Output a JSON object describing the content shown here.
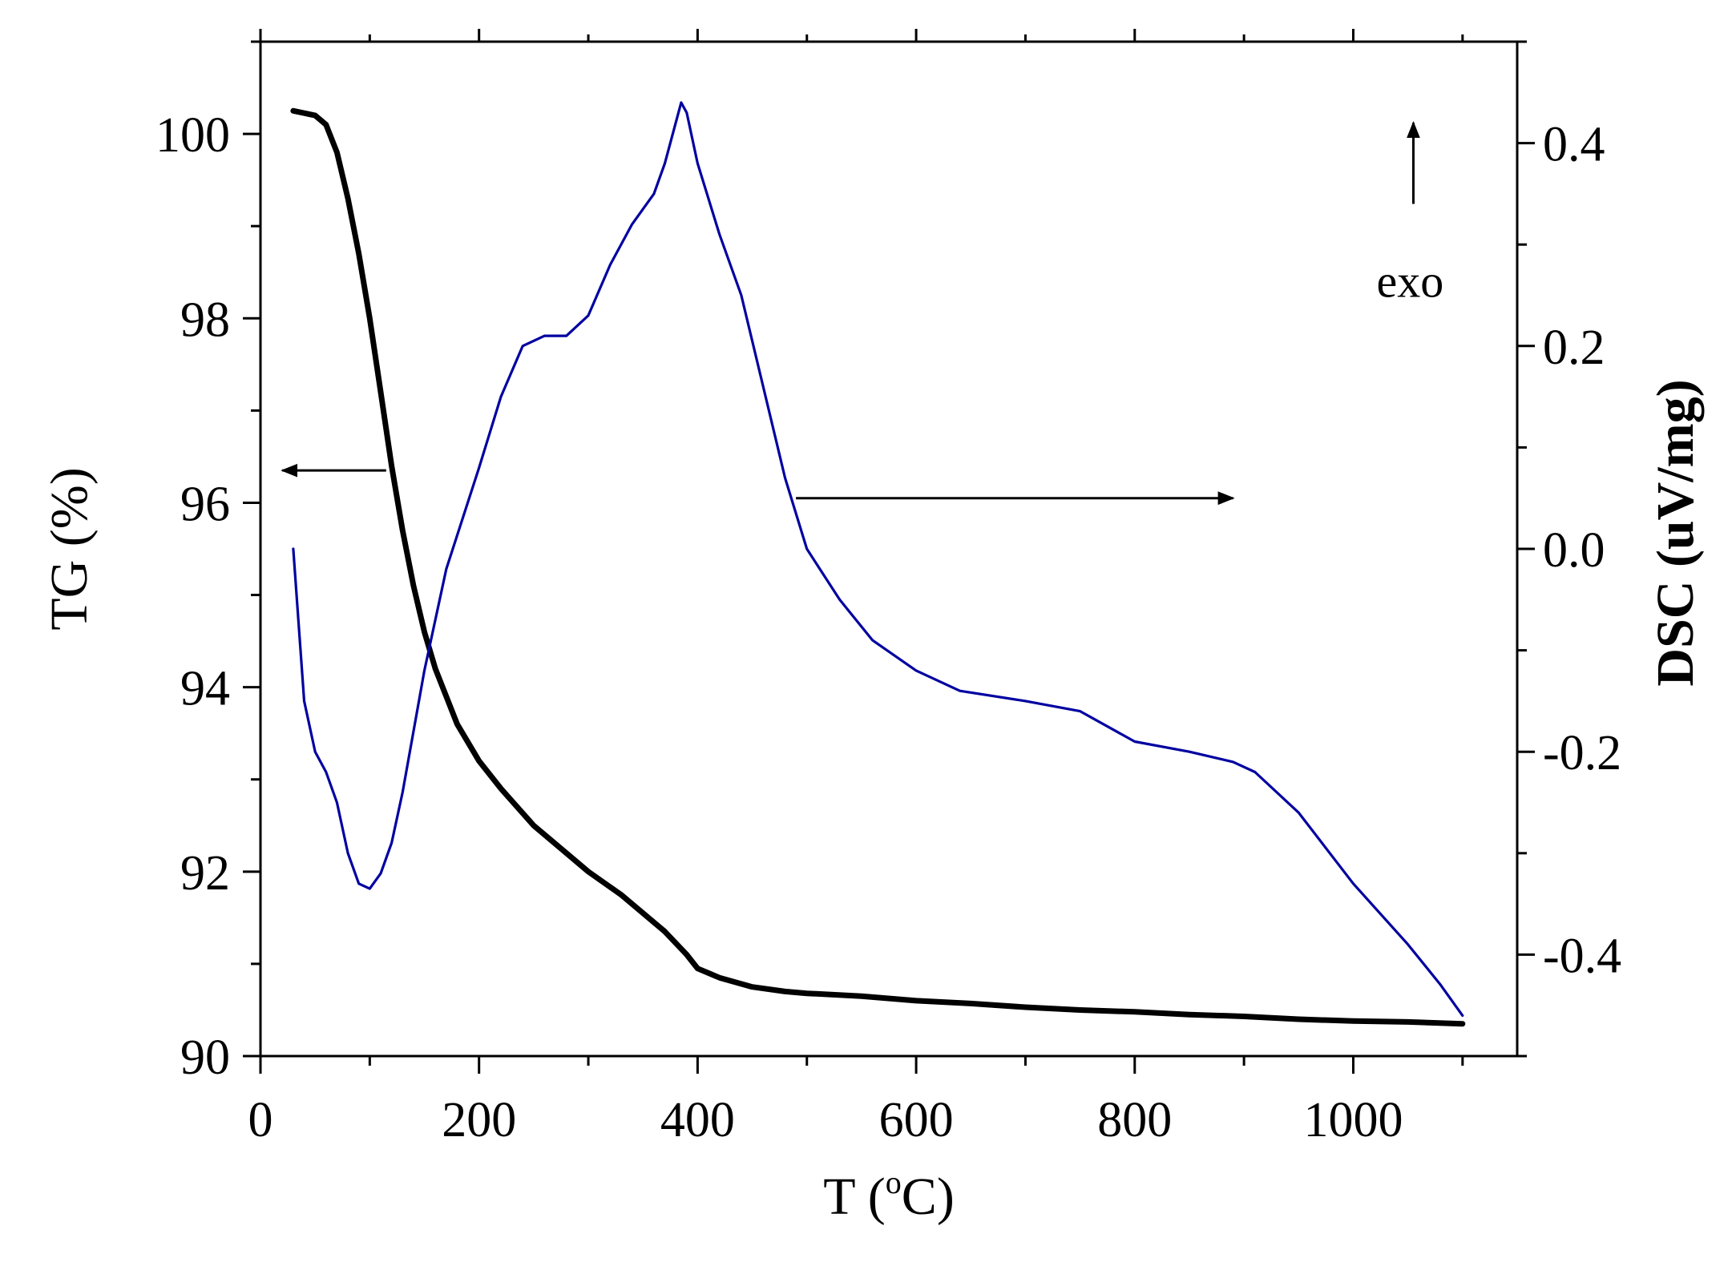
{
  "chart_data": {
    "type": "line",
    "title": "",
    "xlabel": "T (",
    "xlabel_sup": "o",
    "xlabel_tail": "C)",
    "ylabel_left": "TG (%)",
    "ylabel_right": "DSC (uV/mg)",
    "xlim": [
      0,
      1150
    ],
    "ylim_left": [
      90,
      101
    ],
    "ylim_right": [
      -0.5,
      0.5
    ],
    "x_ticks": [
      0,
      200,
      400,
      600,
      800,
      1000
    ],
    "x_tick_labels": [
      "0",
      "200",
      "400",
      "600",
      "800",
      "1000"
    ],
    "y_left_ticks": [
      90,
      92,
      94,
      96,
      98,
      100
    ],
    "y_left_tick_labels": [
      "90",
      "92",
      "94",
      "96",
      "98",
      "100"
    ],
    "y_right_ticks": [
      -0.4,
      -0.2,
      0.0,
      0.2,
      0.4
    ],
    "y_right_tick_labels": [
      "-0.4",
      "-0.2",
      "0.0",
      "0.2",
      "0.4"
    ],
    "grid": false,
    "series": [
      {
        "name": "TG",
        "axis": "left",
        "color": "#000000",
        "x": [
          30,
          50,
          60,
          70,
          80,
          90,
          100,
          110,
          120,
          130,
          140,
          150,
          160,
          170,
          180,
          200,
          220,
          250,
          280,
          300,
          330,
          350,
          370,
          390,
          400,
          420,
          450,
          480,
          500,
          550,
          600,
          650,
          700,
          750,
          800,
          850,
          900,
          950,
          1000,
          1050,
          1100
        ],
        "values": [
          100.25,
          100.2,
          100.1,
          99.8,
          99.3,
          98.7,
          98.0,
          97.2,
          96.4,
          95.7,
          95.1,
          94.6,
          94.2,
          93.9,
          93.6,
          93.2,
          92.9,
          92.5,
          92.2,
          92.0,
          91.75,
          91.55,
          91.35,
          91.1,
          90.95,
          90.85,
          90.75,
          90.7,
          90.68,
          90.65,
          90.6,
          90.57,
          90.53,
          90.5,
          90.48,
          90.45,
          90.43,
          90.4,
          90.38,
          90.37,
          90.35
        ]
      },
      {
        "name": "DSC",
        "axis": "right",
        "color": "#0000a0",
        "x": [
          30,
          40,
          50,
          60,
          70,
          80,
          90,
          100,
          110,
          120,
          130,
          140,
          150,
          170,
          200,
          220,
          240,
          260,
          280,
          300,
          320,
          340,
          360,
          370,
          380,
          385,
          390,
          400,
          420,
          440,
          460,
          480,
          500,
          530,
          560,
          600,
          640,
          700,
          750,
          800,
          850,
          890,
          910,
          950,
          1000,
          1050,
          1080,
          1100
        ],
        "values": [
          0.0,
          -0.15,
          -0.2,
          -0.22,
          -0.25,
          -0.3,
          -0.33,
          -0.335,
          -0.32,
          -0.29,
          -0.24,
          -0.18,
          -0.12,
          -0.02,
          0.08,
          0.15,
          0.2,
          0.21,
          0.21,
          0.23,
          0.28,
          0.32,
          0.35,
          0.38,
          0.42,
          0.44,
          0.43,
          0.38,
          0.31,
          0.25,
          0.16,
          0.07,
          0.0,
          -0.05,
          -0.09,
          -0.12,
          -0.14,
          -0.15,
          -0.16,
          -0.19,
          -0.2,
          -0.21,
          -0.22,
          -0.26,
          -0.33,
          -0.39,
          -0.43,
          -0.46
        ]
      }
    ],
    "annotations": {
      "exo_label": "exo",
      "left_arrow": {
        "from": [
          115,
          96.35
        ],
        "to": [
          20,
          96.35
        ]
      },
      "right_arrow": {
        "from": [
          490,
          96.05
        ],
        "to": [
          890,
          96.05
        ]
      },
      "exo_arrow": {
        "from": [
          1055,
          0.34
        ],
        "to": [
          1055,
          0.42
        ]
      },
      "exo_text_pos": [
        1052,
        0.28
      ]
    }
  }
}
